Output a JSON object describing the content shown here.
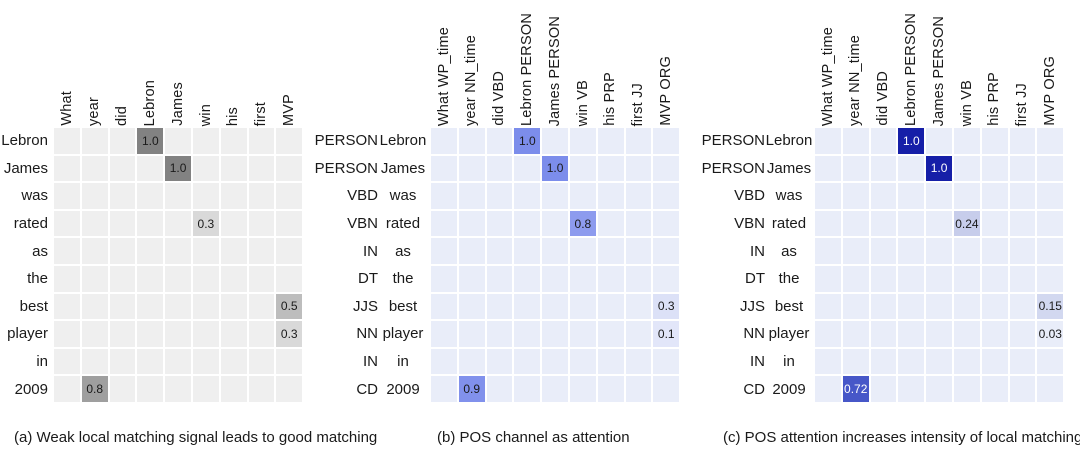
{
  "figure": {
    "background": "#ffffff",
    "default_text_color": "#1a1a1a",
    "grid_line_color": "#ffffff"
  },
  "chart_data": [
    {
      "type": "heatmap",
      "caption": "(a) Weak local matching signal leads to good matching",
      "x_labels": [
        "What",
        "year",
        "did",
        "Lebron",
        "James",
        "win",
        "his",
        "first",
        "MVP"
      ],
      "y_labels": [
        "Lebron",
        "James",
        "was",
        "rated",
        "as",
        "the",
        "best",
        "player",
        "in",
        "2009"
      ],
      "base_cell_color": "#efefef",
      "cells": [
        {
          "row": 0,
          "col": 3,
          "value": "1.0",
          "bg": "#828282",
          "fg": "#1a1a1a"
        },
        {
          "row": 1,
          "col": 4,
          "value": "1.0",
          "bg": "#828282",
          "fg": "#1a1a1a"
        },
        {
          "row": 3,
          "col": 5,
          "value": "0.3",
          "bg": "#d9d9d9",
          "fg": "#1a1a1a"
        },
        {
          "row": 6,
          "col": 8,
          "value": "0.5",
          "bg": "#bdbdbd",
          "fg": "#1a1a1a"
        },
        {
          "row": 7,
          "col": 8,
          "value": "0.3",
          "bg": "#d9d9d9",
          "fg": "#1a1a1a"
        },
        {
          "row": 9,
          "col": 1,
          "value": "0.8",
          "bg": "#9f9f9f",
          "fg": "#1a1a1a"
        }
      ]
    },
    {
      "type": "heatmap",
      "caption": "(b) POS channel as attention",
      "x_labels": [
        "What WP_time",
        "year NN_time",
        "did VBD",
        "Lebron PERSON",
        "James PERSON",
        "win VB",
        "his PRP",
        "first JJ",
        "MVP ORG"
      ],
      "y_labels": [
        {
          "pos": "PERSON",
          "word": "Lebron"
        },
        {
          "pos": "PERSON",
          "word": "James"
        },
        {
          "pos": "VBD",
          "word": "was"
        },
        {
          "pos": "VBN",
          "word": "rated"
        },
        {
          "pos": "IN",
          "word": "as"
        },
        {
          "pos": "DT",
          "word": "the"
        },
        {
          "pos": "JJS",
          "word": "best"
        },
        {
          "pos": "NN",
          "word": "player"
        },
        {
          "pos": "IN",
          "word": "in"
        },
        {
          "pos": "CD",
          "word": "2009"
        }
      ],
      "base_cell_color": "#e9edf9",
      "cells": [
        {
          "row": 0,
          "col": 3,
          "value": "1.0",
          "bg": "#7c8deb",
          "fg": "#1a1a1a"
        },
        {
          "row": 1,
          "col": 4,
          "value": "1.0",
          "bg": "#7c8deb",
          "fg": "#1a1a1a"
        },
        {
          "row": 3,
          "col": 5,
          "value": "0.8",
          "bg": "#8d9bee",
          "fg": "#1a1a1a"
        },
        {
          "row": 6,
          "col": 8,
          "value": "0.3",
          "bg": "#dce1f7",
          "fg": "#1a1a1a"
        },
        {
          "row": 7,
          "col": 8,
          "value": "0.1",
          "bg": "#e2e6f9",
          "fg": "#1a1a1a"
        },
        {
          "row": 9,
          "col": 1,
          "value": "0.9",
          "bg": "#8191ec",
          "fg": "#1a1a1a"
        }
      ]
    },
    {
      "type": "heatmap",
      "caption": "(c) POS attention increases intensity of local matching",
      "x_labels": [
        "What WP_time",
        "year NN_time",
        "did VBD",
        "Lebron PERSON",
        "James PERSON",
        "win VB",
        "his PRP",
        "first JJ",
        "MVP ORG"
      ],
      "y_labels": [
        {
          "pos": "PERSON",
          "word": "Lebron"
        },
        {
          "pos": "PERSON",
          "word": "James"
        },
        {
          "pos": "VBD",
          "word": "was"
        },
        {
          "pos": "VBN",
          "word": "rated"
        },
        {
          "pos": "IN",
          "word": "as"
        },
        {
          "pos": "DT",
          "word": "the"
        },
        {
          "pos": "JJS",
          "word": "best"
        },
        {
          "pos": "NN",
          "word": "player"
        },
        {
          "pos": "IN",
          "word": "in"
        },
        {
          "pos": "CD",
          "word": "2009"
        }
      ],
      "base_cell_color": "#e9edf9",
      "cells": [
        {
          "row": 0,
          "col": 3,
          "value": "1.0",
          "bg": "#161fa8",
          "fg": "#ffffff"
        },
        {
          "row": 1,
          "col": 4,
          "value": "1.0",
          "bg": "#161fa8",
          "fg": "#ffffff"
        },
        {
          "row": 3,
          "col": 5,
          "value": "0.24",
          "bg": "#c7cdeb",
          "fg": "#1a1a1a"
        },
        {
          "row": 6,
          "col": 8,
          "value": "0.15",
          "bg": "#d2d8f0",
          "fg": "#1a1a1a"
        },
        {
          "row": 7,
          "col": 8,
          "value": "0.03",
          "bg": "#e9edf9",
          "fg": "#1a1a1a"
        },
        {
          "row": 9,
          "col": 1,
          "value": "0.72",
          "bg": "#4757c8",
          "fg": "#ffffff"
        }
      ]
    }
  ]
}
